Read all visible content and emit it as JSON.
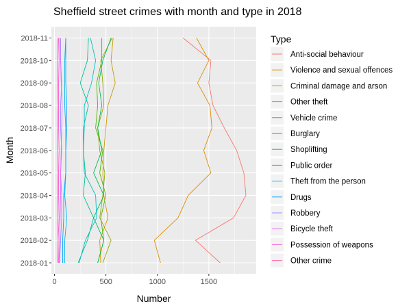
{
  "chart_data": {
    "type": "line",
    "title": "Sheffield street crimes with month and type in 2018",
    "xlabel": "Number",
    "ylabel": "Month",
    "xlim": [
      -30,
      1960
    ],
    "x_ticks": [
      0,
      500,
      1000,
      1500
    ],
    "months": [
      "2018-01",
      "2018-02",
      "2018-03",
      "2018-04",
      "2018-05",
      "2018-06",
      "2018-07",
      "2018-08",
      "2018-09",
      "2018-10",
      "2018-11"
    ],
    "legend": {
      "title": "Type",
      "position": "right"
    },
    "grid": true,
    "series": [
      {
        "name": "Anti-social behaviour",
        "color": "#F8766D",
        "values": [
          1610,
          1370,
          1740,
          1860,
          1840,
          1770,
          1650,
          1540,
          1500,
          1520,
          1250
        ]
      },
      {
        "name": "Violence and sexual offences",
        "color": "#E08B00",
        "values": [
          1030,
          970,
          1200,
          1300,
          1520,
          1450,
          1530,
          1510,
          1390,
          1500,
          1380
        ]
      },
      {
        "name": "Criminal damage and arson",
        "color": "#C49A00",
        "values": [
          450,
          440,
          520,
          480,
          470,
          480,
          500,
          520,
          590,
          550,
          570
        ]
      },
      {
        "name": "Other theft",
        "color": "#99A800",
        "values": [
          470,
          550,
          440,
          470,
          490,
          440,
          420,
          480,
          470,
          450,
          560
        ]
      },
      {
        "name": "Vehicle crime",
        "color": "#53B400",
        "values": [
          420,
          480,
          450,
          500,
          440,
          470,
          400,
          420,
          410,
          460,
          460
        ]
      },
      {
        "name": "Burglary",
        "color": "#00BC56",
        "values": [
          420,
          480,
          380,
          480,
          380,
          460,
          420,
          460,
          430,
          470,
          550
        ]
      },
      {
        "name": "Shoplifting",
        "color": "#00C094",
        "values": [
          230,
          320,
          380,
          280,
          300,
          280,
          280,
          330,
          250,
          320,
          330
        ]
      },
      {
        "name": "Public order",
        "color": "#00BFC4",
        "values": [
          240,
          300,
          410,
          400,
          290,
          280,
          290,
          290,
          360,
          400,
          350
        ]
      },
      {
        "name": "Theft from the person",
        "color": "#00B6EB",
        "values": [
          100,
          100,
          120,
          100,
          110,
          110,
          110,
          100,
          100,
          100,
          110
        ]
      },
      {
        "name": "Drugs",
        "color": "#06A4FF",
        "values": [
          80,
          80,
          90,
          90,
          110,
          110,
          120,
          120,
          110,
          110,
          110
        ]
      },
      {
        "name": "Robbery",
        "color": "#A58AFF",
        "values": [
          50,
          60,
          70,
          70,
          60,
          70,
          60,
          60,
          70,
          60,
          60
        ]
      },
      {
        "name": "Bicycle theft",
        "color": "#DF70F8",
        "values": [
          45,
          50,
          55,
          60,
          60,
          65,
          70,
          75,
          65,
          60,
          50
        ]
      },
      {
        "name": "Possession of weapons",
        "color": "#FB61D7",
        "values": [
          40,
          35,
          45,
          40,
          40,
          45,
          40,
          40,
          40,
          45,
          40
        ]
      },
      {
        "name": "Other crime",
        "color": "#FF66A8",
        "values": [
          30,
          35,
          30,
          30,
          35,
          30,
          30,
          35,
          30,
          30,
          35
        ]
      }
    ]
  }
}
